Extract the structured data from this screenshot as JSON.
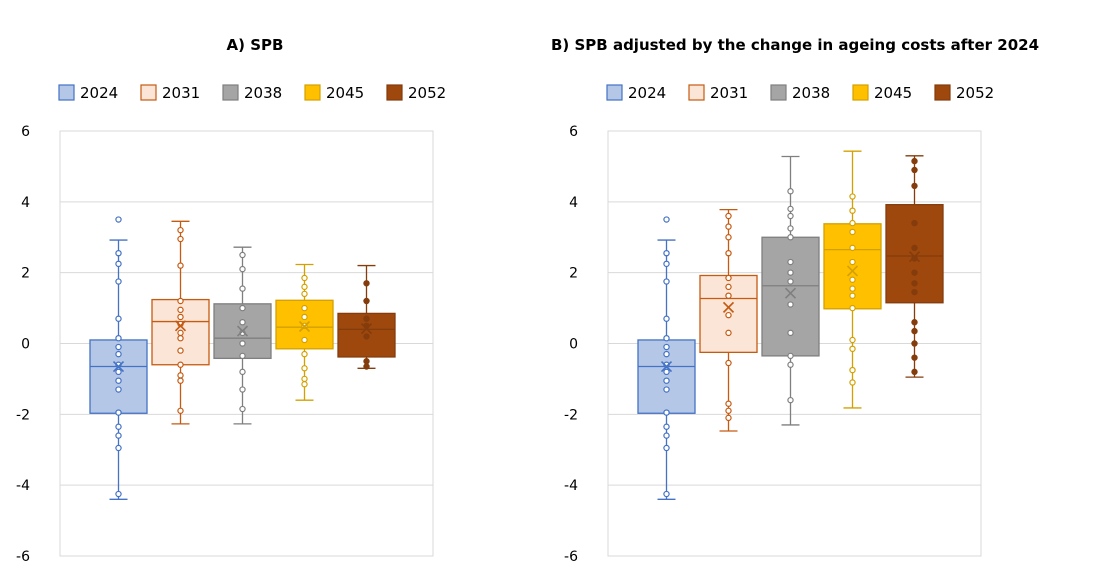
{
  "chart_data": [
    {
      "type": "boxplot",
      "title": "A) SPB",
      "xlabel": "",
      "ylabel": "",
      "ylim": [
        -6,
        6
      ],
      "yticks": [
        6,
        4,
        2,
        0,
        -2,
        -4,
        -6
      ],
      "ytick_labels": [
        "6",
        "4",
        "2",
        "0",
        "-2",
        "-4",
        "-6"
      ],
      "grid": true,
      "legend_position": "top",
      "series": [
        {
          "name": "2024",
          "style": "hollow-points",
          "fill": "#b4c7e7",
          "stroke": "#4472c4",
          "whisker_low": -4.4,
          "q1": -1.97,
          "median": -0.65,
          "q3": 0.1,
          "whisker_high": 2.92,
          "mean": -0.65,
          "points": [
            3.5,
            2.55,
            2.25,
            1.75,
            0.7,
            0.15,
            -0.1,
            -0.3,
            -0.6,
            -0.8,
            -1.05,
            -1.3,
            -1.95,
            -2.35,
            -2.6,
            -2.95,
            -4.25
          ]
        },
        {
          "name": "2031",
          "style": "hollow-points",
          "fill": "#fbe5d6",
          "stroke": "#c55a11",
          "whisker_low": -2.27,
          "q1": -0.6,
          "median": 0.62,
          "q3": 1.24,
          "whisker_high": 3.45,
          "mean": 0.5,
          "points": [
            3.2,
            2.95,
            2.2,
            1.2,
            0.95,
            0.75,
            0.55,
            0.3,
            0.15,
            -0.2,
            -0.6,
            -0.9,
            -1.05,
            -1.9
          ]
        },
        {
          "name": "2038",
          "style": "hollow-points",
          "fill": "#a5a5a5",
          "stroke": "#7f7f7f",
          "whisker_low": -2.27,
          "q1": -0.42,
          "median": 0.15,
          "q3": 1.12,
          "whisker_high": 2.72,
          "mean": 0.35,
          "points": [
            2.5,
            2.1,
            1.55,
            1.0,
            0.6,
            0.3,
            0.0,
            -0.35,
            -0.8,
            -1.3,
            -1.85
          ]
        },
        {
          "name": "2045",
          "style": "hollow-points",
          "fill": "#ffc000",
          "stroke": "#d4a000",
          "whisker_low": -1.6,
          "q1": -0.15,
          "median": 0.46,
          "q3": 1.22,
          "whisker_high": 2.23,
          "mean": 0.48,
          "points": [
            1.85,
            1.6,
            1.4,
            1.0,
            0.75,
            0.5,
            0.1,
            -0.3,
            -0.7,
            -1.0,
            -1.15
          ]
        },
        {
          "name": "2052",
          "style": "solid-points",
          "fill": "#9e480e",
          "stroke": "#843c0c",
          "whisker_low": -0.7,
          "q1": -0.38,
          "median": 0.4,
          "q3": 0.85,
          "whisker_high": 2.2,
          "mean": 0.42,
          "points": [
            1.7,
            1.2,
            0.7,
            0.5,
            0.2,
            -0.5,
            -0.65
          ]
        }
      ]
    },
    {
      "type": "boxplot",
      "title": "B) SPB adjusted by the change in ageing costs after 2024",
      "xlabel": "",
      "ylabel": "",
      "ylim": [
        -6,
        6
      ],
      "yticks": [
        6,
        4,
        2,
        0,
        -2,
        -4,
        -6
      ],
      "ytick_labels": [
        "6",
        "4",
        "2",
        "0",
        "-2",
        "-4",
        "-6"
      ],
      "grid": true,
      "legend_position": "top",
      "series": [
        {
          "name": "2024",
          "style": "hollow-points",
          "fill": "#b4c7e7",
          "stroke": "#4472c4",
          "whisker_low": -4.4,
          "q1": -1.97,
          "median": -0.65,
          "q3": 0.1,
          "whisker_high": 2.92,
          "mean": -0.65,
          "points": [
            3.5,
            2.55,
            2.25,
            1.75,
            0.7,
            0.15,
            -0.1,
            -0.3,
            -0.6,
            -0.8,
            -1.05,
            -1.3,
            -1.95,
            -2.35,
            -2.6,
            -2.95,
            -4.25
          ]
        },
        {
          "name": "2031",
          "style": "hollow-points",
          "fill": "#fbe5d6",
          "stroke": "#c55a11",
          "whisker_low": -2.47,
          "q1": -0.25,
          "median": 1.27,
          "q3": 1.92,
          "whisker_high": 3.78,
          "mean": 1.02,
          "points": [
            3.6,
            3.3,
            3.0,
            2.55,
            1.85,
            1.6,
            1.35,
            0.8,
            0.3,
            -0.55,
            -1.7,
            -1.9,
            -2.1
          ]
        },
        {
          "name": "2038",
          "style": "hollow-points",
          "fill": "#a5a5a5",
          "stroke": "#7f7f7f",
          "whisker_low": -2.3,
          "q1": -0.35,
          "median": 1.63,
          "q3": 3.0,
          "whisker_high": 5.28,
          "mean": 1.42,
          "points": [
            4.3,
            3.8,
            3.6,
            3.25,
            3.0,
            2.3,
            2.0,
            1.75,
            1.1,
            0.3,
            -0.35,
            -0.6,
            -1.6
          ]
        },
        {
          "name": "2045",
          "style": "hollow-points",
          "fill": "#ffc000",
          "stroke": "#d4a000",
          "whisker_low": -1.82,
          "q1": 0.98,
          "median": 2.65,
          "q3": 3.38,
          "whisker_high": 5.43,
          "mean": 2.05,
          "points": [
            4.15,
            3.75,
            3.4,
            3.15,
            2.7,
            2.3,
            1.8,
            1.55,
            1.35,
            1.0,
            0.1,
            -0.15,
            -0.75,
            -1.1
          ]
        },
        {
          "name": "2052",
          "style": "solid-points",
          "fill": "#9e480e",
          "stroke": "#843c0c",
          "whisker_low": -0.95,
          "q1": 1.15,
          "median": 2.47,
          "q3": 3.92,
          "whisker_high": 5.3,
          "mean": 2.45,
          "points": [
            5.15,
            4.9,
            4.45,
            3.4,
            2.7,
            2.4,
            2.0,
            1.7,
            1.45,
            0.6,
            0.35,
            0.0,
            -0.4,
            -0.8
          ]
        }
      ]
    }
  ]
}
